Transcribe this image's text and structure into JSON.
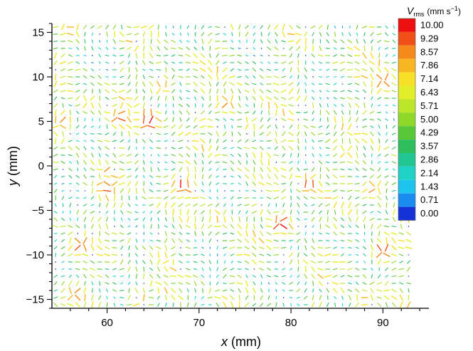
{
  "chart_data": {
    "type": "quiver",
    "xlabel_var": "x",
    "xlabel_unit": "(mm)",
    "ylabel_var": "y",
    "ylabel_unit": "(mm)",
    "xlim": [
      54,
      95
    ],
    "ylim": [
      -16,
      16
    ],
    "xticks": [
      60,
      70,
      80,
      90
    ],
    "yticks": [
      15,
      10,
      5,
      0,
      -5,
      -10,
      -15
    ],
    "ytick_labels": [
      "15",
      "10",
      "5",
      "0",
      "−5",
      "−10",
      "−15"
    ],
    "colorbar": {
      "title_var": "V",
      "title_sub": "rms",
      "title_unit": "(mm s",
      "title_exp": "−1",
      "title_close": ")",
      "levels": [
        "10.00",
        "9.29",
        "8.57",
        "7.86",
        "7.14",
        "6.43",
        "5.71",
        "5.00",
        "4.29",
        "3.57",
        "2.86",
        "2.14",
        "1.43",
        "0.71",
        "0.00"
      ],
      "colors": [
        "#ee1010",
        "#f05018",
        "#f58a1a",
        "#f8b622",
        "#f8e028",
        "#e2ee2a",
        "#bce62a",
        "#8ed82a",
        "#58c838",
        "#2ebe5e",
        "#22c692",
        "#20d2c6",
        "#1cc4ee",
        "#1a8cf0",
        "#1432d8"
      ]
    },
    "vector_field": {
      "grid_spacing_mm": 0.8,
      "vmin": 0,
      "vmax": 10,
      "hotspots": [
        {
          "x": 64.5,
          "y": 5,
          "v": 10
        },
        {
          "x": 61.5,
          "y": 5.5,
          "v": 9
        },
        {
          "x": 55,
          "y": 5,
          "v": 8.5
        },
        {
          "x": 68.2,
          "y": -2,
          "v": 9.5
        },
        {
          "x": 82,
          "y": -2,
          "v": 9
        },
        {
          "x": 89,
          "y": -2.5,
          "v": 8.5
        },
        {
          "x": 79,
          "y": -6.5,
          "v": 10
        },
        {
          "x": 90,
          "y": -9.5,
          "v": 9.5
        },
        {
          "x": 57,
          "y": -9,
          "v": 9
        },
        {
          "x": 60,
          "y": -2.5,
          "v": 9
        },
        {
          "x": 73,
          "y": 7,
          "v": 8.5
        },
        {
          "x": 90,
          "y": 9.5,
          "v": 9
        },
        {
          "x": 66,
          "y": 9,
          "v": 8
        },
        {
          "x": 56,
          "y": 15.5,
          "v": 8
        },
        {
          "x": 56.5,
          "y": -14.5,
          "v": 8.5
        },
        {
          "x": 63.5,
          "y": -15,
          "v": 8
        },
        {
          "x": 88,
          "y": -15,
          "v": 7.5
        },
        {
          "x": 72,
          "y": -6,
          "v": 7.5
        },
        {
          "x": 66,
          "y": -10,
          "v": 7
        },
        {
          "x": 86,
          "y": 1.5,
          "v": 7
        },
        {
          "x": 80,
          "y": 3,
          "v": 6.5
        },
        {
          "x": 75.5,
          "y": 4.5,
          "v": 7
        },
        {
          "x": 58,
          "y": 7,
          "v": 7
        },
        {
          "x": 94,
          "y": -12,
          "v": 6.5
        }
      ]
    }
  }
}
